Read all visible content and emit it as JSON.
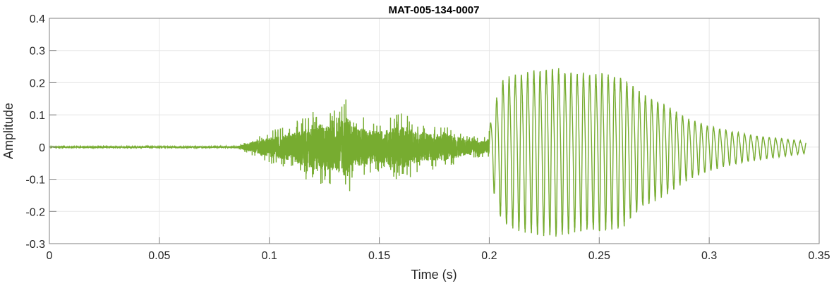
{
  "chart_data": {
    "type": "line",
    "title": "MAT-005-134-0007",
    "xlabel": "Time (s)",
    "ylabel": "Amplitude",
    "xlim": [
      0,
      0.35
    ],
    "ylim": [
      -0.3,
      0.4
    ],
    "xticks": [
      0,
      0.05,
      0.1,
      0.15,
      0.2,
      0.25,
      0.3,
      0.35
    ],
    "xtick_labels": [
      "0",
      "0.05",
      "0.1",
      "0.15",
      "0.2",
      "0.25",
      "0.3",
      "0.35"
    ],
    "yticks": [
      -0.3,
      -0.2,
      -0.1,
      0,
      0.1,
      0.2,
      0.3,
      0.4
    ],
    "ytick_labels": [
      "-0.3",
      "-0.2",
      "-0.1",
      "0",
      "0.1",
      "0.2",
      "0.3",
      "0.4"
    ],
    "grid": true,
    "color": "#77AC30",
    "series": [
      {
        "description_of_values": "amplitude envelope (time s, peak amplitude)",
        "envelope_t": [
          0,
          0.085,
          0.09,
          0.1,
          0.11,
          0.12,
          0.13,
          0.135,
          0.14,
          0.15,
          0.16,
          0.17,
          0.18,
          0.19,
          0.199,
          0.202,
          0.206,
          0.21,
          0.22,
          0.23,
          0.24,
          0.25,
          0.26,
          0.27,
          0.28,
          0.29,
          0.3,
          0.31,
          0.32,
          0.33,
          0.344
        ],
        "envelope_amp": [
          0.002,
          0.003,
          0.02,
          0.05,
          0.07,
          0.12,
          0.12,
          0.16,
          0.1,
          0.08,
          0.11,
          0.07,
          0.07,
          0.04,
          0.03,
          0.15,
          0.26,
          0.27,
          0.29,
          0.3,
          0.28,
          0.28,
          0.27,
          0.2,
          0.16,
          0.11,
          0.08,
          0.06,
          0.045,
          0.035,
          0.02
        ],
        "end_time": 0.344
      }
    ]
  }
}
